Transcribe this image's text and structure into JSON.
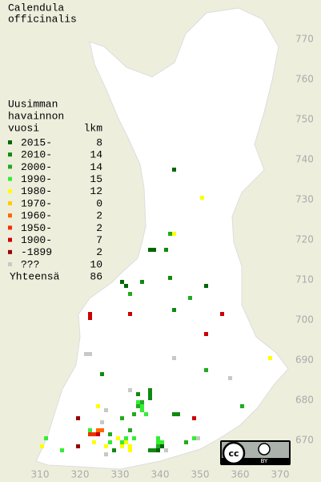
{
  "title": [
    "Calendula",
    "officinalis"
  ],
  "legend": {
    "heading": [
      "Uusimman",
      "havainnon",
      "vuosi"
    ],
    "count_heading": "lkm",
    "entries": [
      {
        "label": "2015-",
        "count": 8,
        "color": "#006600",
        "squares": [
          {
            "x": 343,
            "y": 737
          },
          {
            "x": 337,
            "y": 717
          },
          {
            "x": 338,
            "y": 717
          },
          {
            "x": 331,
            "y": 708
          },
          {
            "x": 330,
            "y": 709
          },
          {
            "x": 351,
            "y": 708
          },
          {
            "x": 339,
            "y": 667
          },
          {
            "x": 340,
            "y": 668
          }
        ]
      },
      {
        "label": "2010-",
        "count": 14,
        "color": "#118811",
        "squares": [
          {
            "x": 325,
            "y": 686
          },
          {
            "x": 335,
            "y": 709
          },
          {
            "x": 342,
            "y": 710
          },
          {
            "x": 343,
            "y": 702
          },
          {
            "x": 337,
            "y": 682
          },
          {
            "x": 337,
            "y": 681
          },
          {
            "x": 337,
            "y": 680
          },
          {
            "x": 334,
            "y": 681
          },
          {
            "x": 343,
            "y": 676
          },
          {
            "x": 344,
            "y": 676
          },
          {
            "x": 338,
            "y": 667
          },
          {
            "x": 337,
            "y": 667
          },
          {
            "x": 328,
            "y": 667
          },
          {
            "x": 341,
            "y": 717
          }
        ]
      },
      {
        "label": "2000-",
        "count": 14,
        "color": "#22aa22",
        "squares": [
          {
            "x": 342,
            "y": 721
          },
          {
            "x": 347,
            "y": 705
          },
          {
            "x": 333,
            "y": 676
          },
          {
            "x": 334,
            "y": 678
          },
          {
            "x": 339,
            "y": 668
          },
          {
            "x": 341,
            "y": 667
          },
          {
            "x": 351,
            "y": 687
          },
          {
            "x": 332,
            "y": 706
          },
          {
            "x": 335,
            "y": 679
          },
          {
            "x": 330,
            "y": 675
          },
          {
            "x": 346,
            "y": 669
          },
          {
            "x": 327,
            "y": 671
          },
          {
            "x": 332,
            "y": 672
          },
          {
            "x": 360,
            "y": 678
          }
        ]
      },
      {
        "label": "1990-",
        "count": 15,
        "color": "#33ee33",
        "squares": [
          {
            "x": 335,
            "y": 677
          },
          {
            "x": 336,
            "y": 676
          },
          {
            "x": 335,
            "y": 678
          },
          {
            "x": 334,
            "y": 679
          },
          {
            "x": 339,
            "y": 669
          },
          {
            "x": 340,
            "y": 669
          },
          {
            "x": 339,
            "y": 670
          },
          {
            "x": 311,
            "y": 670
          },
          {
            "x": 330,
            "y": 669
          },
          {
            "x": 331,
            "y": 670
          },
          {
            "x": 327,
            "y": 669
          },
          {
            "x": 333,
            "y": 670
          },
          {
            "x": 348,
            "y": 670
          },
          {
            "x": 322,
            "y": 672
          },
          {
            "x": 315,
            "y": 667
          }
        ]
      },
      {
        "label": "1980-",
        "count": 12,
        "color": "#ffff00",
        "squares": [
          {
            "x": 350,
            "y": 730
          },
          {
            "x": 343,
            "y": 721
          },
          {
            "x": 367,
            "y": 690
          },
          {
            "x": 324,
            "y": 678
          },
          {
            "x": 331,
            "y": 669
          },
          {
            "x": 330,
            "y": 668
          },
          {
            "x": 332,
            "y": 668
          },
          {
            "x": 310,
            "y": 668
          },
          {
            "x": 329,
            "y": 670
          },
          {
            "x": 323,
            "y": 669
          },
          {
            "x": 332,
            "y": 667
          },
          {
            "x": 326,
            "y": 668
          }
        ]
      },
      {
        "label": "1970-",
        "count": 0,
        "color": "#ffcc00",
        "squares": []
      },
      {
        "label": "1960-",
        "count": 2,
        "color": "#ff6600",
        "squares": [
          {
            "x": 324,
            "y": 672
          },
          {
            "x": 325,
            "y": 672
          }
        ]
      },
      {
        "label": "1950-",
        "count": 2,
        "color": "#ee3300",
        "squares": [
          {
            "x": 323,
            "y": 671
          },
          {
            "x": 322,
            "y": 671
          }
        ]
      },
      {
        "label": "1900-",
        "count": 7,
        "color": "#cc0000",
        "squares": [
          {
            "x": 322,
            "y": 701
          },
          {
            "x": 332,
            "y": 701
          },
          {
            "x": 351,
            "y": 696
          },
          {
            "x": 355,
            "y": 701
          },
          {
            "x": 348,
            "y": 675
          },
          {
            "x": 324,
            "y": 671
          },
          {
            "x": 322,
            "y": 700
          }
        ]
      },
      {
        "label": "-1899",
        "count": 2,
        "color": "#990000",
        "squares": [
          {
            "x": 319,
            "y": 675
          },
          {
            "x": 319,
            "y": 668
          }
        ]
      },
      {
        "label": "???",
        "count": 10,
        "color": "#c8c8c8",
        "squares": [
          {
            "x": 321,
            "y": 691
          },
          {
            "x": 322,
            "y": 691
          },
          {
            "x": 343,
            "y": 690
          },
          {
            "x": 357,
            "y": 685
          },
          {
            "x": 332,
            "y": 682
          },
          {
            "x": 326,
            "y": 677
          },
          {
            "x": 326,
            "y": 666
          },
          {
            "x": 349,
            "y": 670
          },
          {
            "x": 341,
            "y": 667
          },
          {
            "x": 325,
            "y": 674
          }
        ]
      }
    ],
    "total_label": "Yhteensä",
    "total": 86
  },
  "axes": {
    "xticks": [
      310,
      320,
      330,
      340,
      350,
      360,
      370
    ],
    "yticks": [
      670,
      680,
      690,
      700,
      710,
      720,
      730,
      740,
      750,
      760,
      770
    ]
  },
  "badge": {
    "logo": "cc",
    "label": "BY"
  }
}
